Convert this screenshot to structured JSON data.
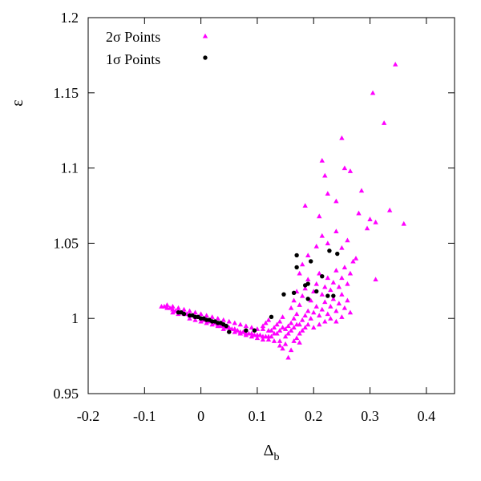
{
  "chart_data": {
    "type": "scatter",
    "title": "",
    "xlabel": "Δ",
    "xlabel_subscript": "b",
    "ylabel": "ε",
    "xlim": [
      -0.2,
      0.45
    ],
    "ylim": [
      0.95,
      1.2
    ],
    "x_ticks": [
      -0.2,
      -0.1,
      0,
      0.1,
      0.2,
      0.3,
      0.4
    ],
    "x_tick_labels": [
      "-0.2",
      "-0.1",
      "0",
      "0.1",
      "0.2",
      "0.3",
      "0.4"
    ],
    "y_ticks": [
      0.95,
      1.0,
      1.05,
      1.1,
      1.15,
      1.2
    ],
    "y_tick_labels": [
      "0.95",
      "1",
      "1.05",
      "1.1",
      "1.15",
      "1.2"
    ],
    "grid": false,
    "legend_position": "top-left",
    "series": [
      {
        "name": "2σ Points",
        "marker": "triangle",
        "color": "#ff00ff",
        "points": [
          [
            -0.07,
            1.008
          ],
          [
            -0.065,
            1.008
          ],
          [
            -0.06,
            1.007
          ],
          [
            -0.055,
            1.007
          ],
          [
            -0.05,
            1.006
          ],
          [
            -0.045,
            1.005
          ],
          [
            -0.04,
            1.005
          ],
          [
            -0.035,
            1.004
          ],
          [
            -0.03,
            1.004
          ],
          [
            -0.025,
            1.003
          ],
          [
            -0.02,
            1.002
          ],
          [
            -0.015,
            1.002
          ],
          [
            -0.01,
            1.001
          ],
          [
            -0.005,
            1.001
          ],
          [
            0.0,
            1.0
          ],
          [
            0.005,
            0.999
          ],
          [
            0.01,
            0.999
          ],
          [
            0.015,
            0.998
          ],
          [
            0.02,
            0.998
          ],
          [
            0.025,
            0.997
          ],
          [
            0.03,
            0.996
          ],
          [
            0.035,
            0.995
          ],
          [
            0.04,
            0.995
          ],
          [
            0.045,
            0.994
          ],
          [
            0.05,
            0.994
          ],
          [
            0.055,
            0.993
          ],
          [
            0.06,
            0.993
          ],
          [
            0.065,
            0.992
          ],
          [
            0.07,
            0.991
          ],
          [
            0.075,
            0.991
          ],
          [
            0.08,
            0.99
          ],
          [
            0.085,
            0.99
          ],
          [
            0.09,
            0.99
          ],
          [
            0.095,
            0.989
          ],
          [
            0.1,
            0.989
          ],
          [
            0.105,
            0.989
          ],
          [
            0.11,
            0.988
          ],
          [
            0.115,
            0.988
          ],
          [
            0.12,
            0.988
          ],
          [
            0.125,
            0.988
          ],
          [
            -0.06,
            1.009
          ],
          [
            -0.05,
            1.008
          ],
          [
            -0.04,
            1.007
          ],
          [
            -0.03,
            1.006
          ],
          [
            -0.02,
            1.005
          ],
          [
            -0.01,
            1.004
          ],
          [
            0.0,
            1.003
          ],
          [
            0.01,
            1.002
          ],
          [
            0.02,
            1.001
          ],
          [
            0.03,
            1.0
          ],
          [
            0.04,
            0.999
          ],
          [
            0.05,
            0.998
          ],
          [
            0.06,
            0.997
          ],
          [
            0.07,
            0.996
          ],
          [
            0.08,
            0.995
          ],
          [
            0.09,
            0.994
          ],
          [
            0.1,
            0.993
          ],
          [
            0.11,
            0.993
          ],
          [
            0.12,
            0.992
          ],
          [
            0.13,
            0.99
          ],
          [
            -0.05,
            1.004
          ],
          [
            -0.04,
            1.003
          ],
          [
            -0.03,
            1.003
          ],
          [
            -0.02,
            1.0
          ],
          [
            -0.01,
            0.999
          ],
          [
            0.0,
            0.998
          ],
          [
            0.01,
            0.997
          ],
          [
            0.02,
            0.996
          ],
          [
            0.03,
            0.995
          ],
          [
            0.04,
            0.993
          ],
          [
            0.05,
            0.992
          ],
          [
            0.06,
            0.991
          ],
          [
            0.07,
            0.99
          ],
          [
            0.08,
            0.989
          ],
          [
            0.09,
            0.988
          ],
          [
            0.1,
            0.987
          ],
          [
            0.11,
            0.986
          ],
          [
            0.12,
            0.986
          ],
          [
            0.13,
            0.985
          ],
          [
            0.14,
            0.985
          ],
          [
            0.11,
            0.995
          ],
          [
            0.115,
            0.997
          ],
          [
            0.12,
            0.999
          ],
          [
            0.125,
            0.992
          ],
          [
            0.13,
            0.994
          ],
          [
            0.135,
            0.996
          ],
          [
            0.14,
            0.998
          ],
          [
            0.145,
            1.001
          ],
          [
            0.15,
            0.993
          ],
          [
            0.155,
            0.995
          ],
          [
            0.16,
            0.997
          ],
          [
            0.165,
            1.0
          ],
          [
            0.17,
            1.003
          ],
          [
            0.175,
            0.996
          ],
          [
            0.18,
            0.999
          ],
          [
            0.185,
            1.002
          ],
          [
            0.19,
            1.005
          ],
          [
            0.195,
            1.0
          ],
          [
            0.2,
            1.004
          ],
          [
            0.205,
            1.008
          ],
          [
            0.21,
            1.002
          ],
          [
            0.215,
            1.006
          ],
          [
            0.22,
            1.011
          ],
          [
            0.225,
            1.003
          ],
          [
            0.23,
            1.008
          ],
          [
            0.235,
            1.013
          ],
          [
            0.24,
            1.005
          ],
          [
            0.245,
            1.01
          ],
          [
            0.25,
            1.016
          ],
          [
            0.255,
            1.007
          ],
          [
            0.26,
            1.012
          ],
          [
            0.265,
            1.004
          ],
          [
            0.135,
            0.99
          ],
          [
            0.14,
            0.992
          ],
          [
            0.145,
            0.994
          ],
          [
            0.15,
            0.988
          ],
          [
            0.155,
            0.99
          ],
          [
            0.16,
            0.992
          ],
          [
            0.165,
            0.994
          ],
          [
            0.17,
            0.996
          ],
          [
            0.175,
            0.99
          ],
          [
            0.18,
            0.992
          ],
          [
            0.185,
            0.994
          ],
          [
            0.19,
            0.996
          ],
          [
            0.2,
            0.994
          ],
          [
            0.21,
            0.996
          ],
          [
            0.22,
            0.998
          ],
          [
            0.23,
            1.0
          ],
          [
            0.24,
            0.998
          ],
          [
            0.25,
            1.001
          ],
          [
            0.155,
            0.974
          ],
          [
            0.16,
            0.979
          ],
          [
            0.145,
            0.98
          ],
          [
            0.15,
            0.983
          ],
          [
            0.165,
            0.985
          ],
          [
            0.17,
            0.987
          ],
          [
            0.14,
            0.982
          ],
          [
            0.175,
            0.984
          ],
          [
            0.16,
            1.007
          ],
          [
            0.165,
            1.012
          ],
          [
            0.17,
            1.018
          ],
          [
            0.175,
            1.009
          ],
          [
            0.18,
            1.015
          ],
          [
            0.185,
            1.02
          ],
          [
            0.19,
            1.026
          ],
          [
            0.195,
            1.012
          ],
          [
            0.2,
            1.018
          ],
          [
            0.205,
            1.023
          ],
          [
            0.21,
            1.03
          ],
          [
            0.215,
            1.016
          ],
          [
            0.22,
            1.021
          ],
          [
            0.225,
            1.027
          ],
          [
            0.23,
            1.019
          ],
          [
            0.235,
            1.024
          ],
          [
            0.24,
            1.032
          ],
          [
            0.245,
            1.021
          ],
          [
            0.25,
            1.027
          ],
          [
            0.255,
            1.034
          ],
          [
            0.26,
            1.023
          ],
          [
            0.265,
            1.03
          ],
          [
            0.27,
            1.038
          ],
          [
            0.175,
            1.03
          ],
          [
            0.18,
            1.036
          ],
          [
            0.19,
            1.042
          ],
          [
            0.205,
            1.048
          ],
          [
            0.215,
            1.055
          ],
          [
            0.225,
            1.05
          ],
          [
            0.24,
            1.058
          ],
          [
            0.25,
            1.047
          ],
          [
            0.26,
            1.052
          ],
          [
            0.275,
            1.04
          ],
          [
            0.28,
            1.07
          ],
          [
            0.285,
            1.085
          ],
          [
            0.295,
            1.06
          ],
          [
            0.185,
            1.075
          ],
          [
            0.21,
            1.068
          ],
          [
            0.22,
            1.095
          ],
          [
            0.215,
            1.105
          ],
          [
            0.225,
            1.083
          ],
          [
            0.24,
            1.078
          ],
          [
            0.255,
            1.1
          ],
          [
            0.265,
            1.098
          ],
          [
            0.25,
            1.12
          ],
          [
            0.3,
            1.066
          ],
          [
            0.31,
            1.064
          ],
          [
            0.31,
            1.026
          ],
          [
            0.335,
            1.072
          ],
          [
            0.36,
            1.063
          ],
          [
            0.305,
            1.15
          ],
          [
            0.325,
            1.13
          ],
          [
            0.345,
            1.169
          ]
        ]
      },
      {
        "name": "1σ Points",
        "marker": "circle",
        "color": "#000000",
        "points": [
          [
            -0.04,
            1.004
          ],
          [
            -0.035,
            1.004
          ],
          [
            -0.03,
            1.003
          ],
          [
            -0.02,
            1.002
          ],
          [
            -0.015,
            1.002
          ],
          [
            -0.01,
            1.001
          ],
          [
            -0.005,
            1.001
          ],
          [
            0.0,
            1.0
          ],
          [
            0.005,
            1.0
          ],
          [
            0.01,
            0.999
          ],
          [
            0.015,
            0.999
          ],
          [
            0.02,
            0.998
          ],
          [
            0.025,
            0.998
          ],
          [
            0.03,
            0.997
          ],
          [
            0.035,
            0.997
          ],
          [
            0.04,
            0.996
          ],
          [
            0.045,
            0.995
          ],
          [
            0.05,
            0.991
          ],
          [
            0.08,
            0.992
          ],
          [
            0.095,
            0.992
          ],
          [
            0.125,
            1.001
          ],
          [
            0.147,
            1.016
          ],
          [
            0.165,
            1.017
          ],
          [
            0.17,
            1.034
          ],
          [
            0.17,
            1.042
          ],
          [
            0.185,
            1.022
          ],
          [
            0.19,
            1.023
          ],
          [
            0.19,
            1.013
          ],
          [
            0.195,
            1.038
          ],
          [
            0.205,
            1.018
          ],
          [
            0.215,
            1.028
          ],
          [
            0.225,
            1.015
          ],
          [
            0.228,
            1.045
          ],
          [
            0.235,
            1.015
          ],
          [
            0.242,
            1.043
          ]
        ]
      }
    ]
  }
}
